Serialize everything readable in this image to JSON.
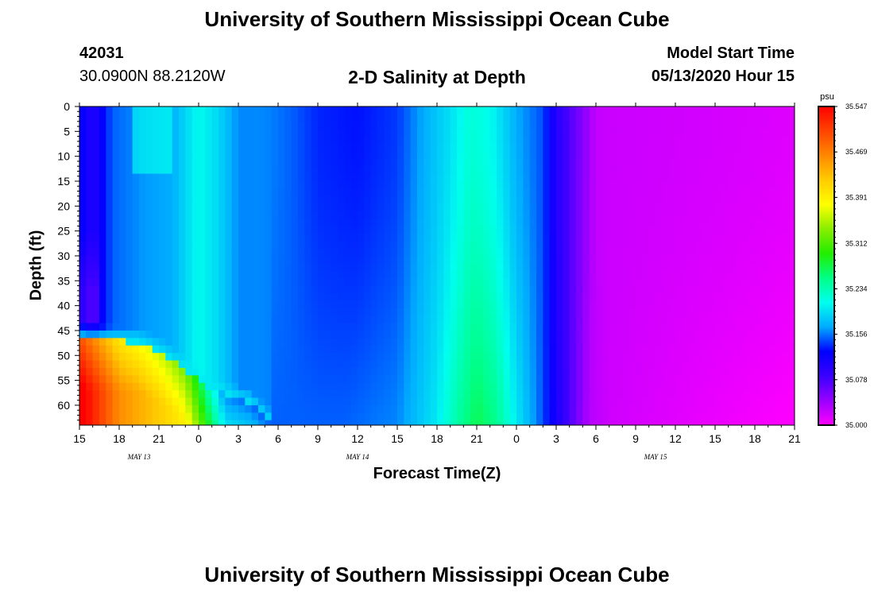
{
  "header": {
    "title": "University of Southern Mississippi Ocean Cube",
    "station_id": "42031",
    "coordinates": "30.0900N 88.2120W",
    "subtitle": "2-D Salinity at Depth",
    "model_start_label": "Model Start Time",
    "model_start_value": "05/13/2020 Hour 15"
  },
  "footer": {
    "title": "University of Southern Mississippi Ocean Cube"
  },
  "chart_data": {
    "type": "heatmap",
    "title": "2-D Salinity at Depth",
    "xlabel": "Forecast Time(Z)",
    "ylabel": "Depth (ft)",
    "x_tick_labels": [
      "15",
      "18",
      "21",
      "0",
      "3",
      "6",
      "9",
      "12",
      "15",
      "18",
      "21",
      "0",
      "3",
      "6",
      "9",
      "12",
      "15",
      "18",
      "21"
    ],
    "x_tick_hours": [
      0,
      3,
      6,
      9,
      12,
      15,
      18,
      21,
      24,
      27,
      30,
      33,
      36,
      39,
      42,
      45,
      48,
      51,
      54
    ],
    "x_date_labels": [
      {
        "label": "MAY 13",
        "hour": 4.5
      },
      {
        "label": "MAY 14",
        "hour": 21
      },
      {
        "label": "MAY 15",
        "hour": 43.5
      }
    ],
    "xlim_hours": [
      0,
      54
    ],
    "y_tick_labels": [
      "0",
      "5",
      "10",
      "15",
      "20",
      "25",
      "30",
      "35",
      "40",
      "45",
      "50",
      "55",
      "60"
    ],
    "y_ticks": [
      0,
      5,
      10,
      15,
      20,
      25,
      30,
      35,
      40,
      45,
      50,
      55,
      60
    ],
    "ylim": [
      0,
      64
    ],
    "y_inverted": true,
    "colorbar": {
      "unit": "psu",
      "min": 35.0,
      "max": 35.547,
      "tick_labels": [
        "35.547",
        "35.469",
        "35.391",
        "35.312",
        "35.234",
        "35.156",
        "35.078",
        "35.000"
      ],
      "ticks": [
        35.547,
        35.469,
        35.391,
        35.312,
        35.234,
        35.156,
        35.078,
        35.0
      ],
      "colors": [
        "#ff00ff",
        "#9900ff",
        "#3a00ff",
        "#0000ff",
        "#00aaff",
        "#00ffee",
        "#00ff88",
        "#22ee00",
        "#88ee00",
        "#ffff00",
        "#ffcc00",
        "#ff8800",
        "#ff4400",
        "#ff0000"
      ]
    },
    "surface_salinity_by_hour": [
      [
        0,
        35.13
      ],
      [
        1,
        35.1
      ],
      [
        2.5,
        35.15
      ],
      [
        5,
        35.165
      ],
      [
        7,
        35.17
      ],
      [
        9,
        35.21
      ],
      [
        10.5,
        35.19
      ],
      [
        12,
        35.16
      ],
      [
        14,
        35.16
      ],
      [
        16,
        35.15
      ],
      [
        18,
        35.135
      ],
      [
        21,
        35.13
      ],
      [
        24,
        35.14
      ],
      [
        26,
        35.17
      ],
      [
        28,
        35.195
      ],
      [
        29.5,
        35.22
      ],
      [
        31,
        35.21
      ],
      [
        33,
        35.17
      ],
      [
        35,
        35.145
      ],
      [
        36,
        35.1
      ],
      [
        37,
        35.075
      ],
      [
        38,
        35.05
      ],
      [
        39,
        35.025
      ],
      [
        40,
        35.022
      ],
      [
        44,
        35.02
      ],
      [
        48,
        35.018
      ],
      [
        51,
        35.016
      ],
      [
        54,
        35.013
      ]
    ],
    "bottom_salinity_by_hour": [
      [
        0,
        35.5
      ],
      [
        3,
        35.4
      ],
      [
        6,
        35.36
      ],
      [
        8,
        35.33
      ],
      [
        9.5,
        35.25
      ],
      [
        11,
        35.16
      ],
      [
        14,
        35.15
      ],
      [
        17,
        35.15
      ],
      [
        20,
        35.15
      ],
      [
        24,
        35.16
      ],
      [
        27,
        35.2
      ],
      [
        28.5,
        35.24
      ],
      [
        30,
        35.27
      ],
      [
        31.5,
        35.25
      ],
      [
        33,
        35.2
      ],
      [
        34.5,
        35.16
      ],
      [
        36,
        35.11
      ],
      [
        37.5,
        35.06
      ],
      [
        38.5,
        35.03
      ],
      [
        40,
        35.02
      ],
      [
        45,
        35.012
      ],
      [
        50,
        35.005
      ],
      [
        54,
        35.0
      ]
    ],
    "bottom_layer_top_depth_by_hour": [
      [
        0,
        47
      ],
      [
        2,
        47
      ],
      [
        4.5,
        47.5
      ],
      [
        6.5,
        50
      ],
      [
        8,
        53
      ],
      [
        9.5,
        56
      ],
      [
        11,
        58
      ],
      [
        13,
        60
      ],
      [
        14.5,
        64
      ]
    ]
  }
}
